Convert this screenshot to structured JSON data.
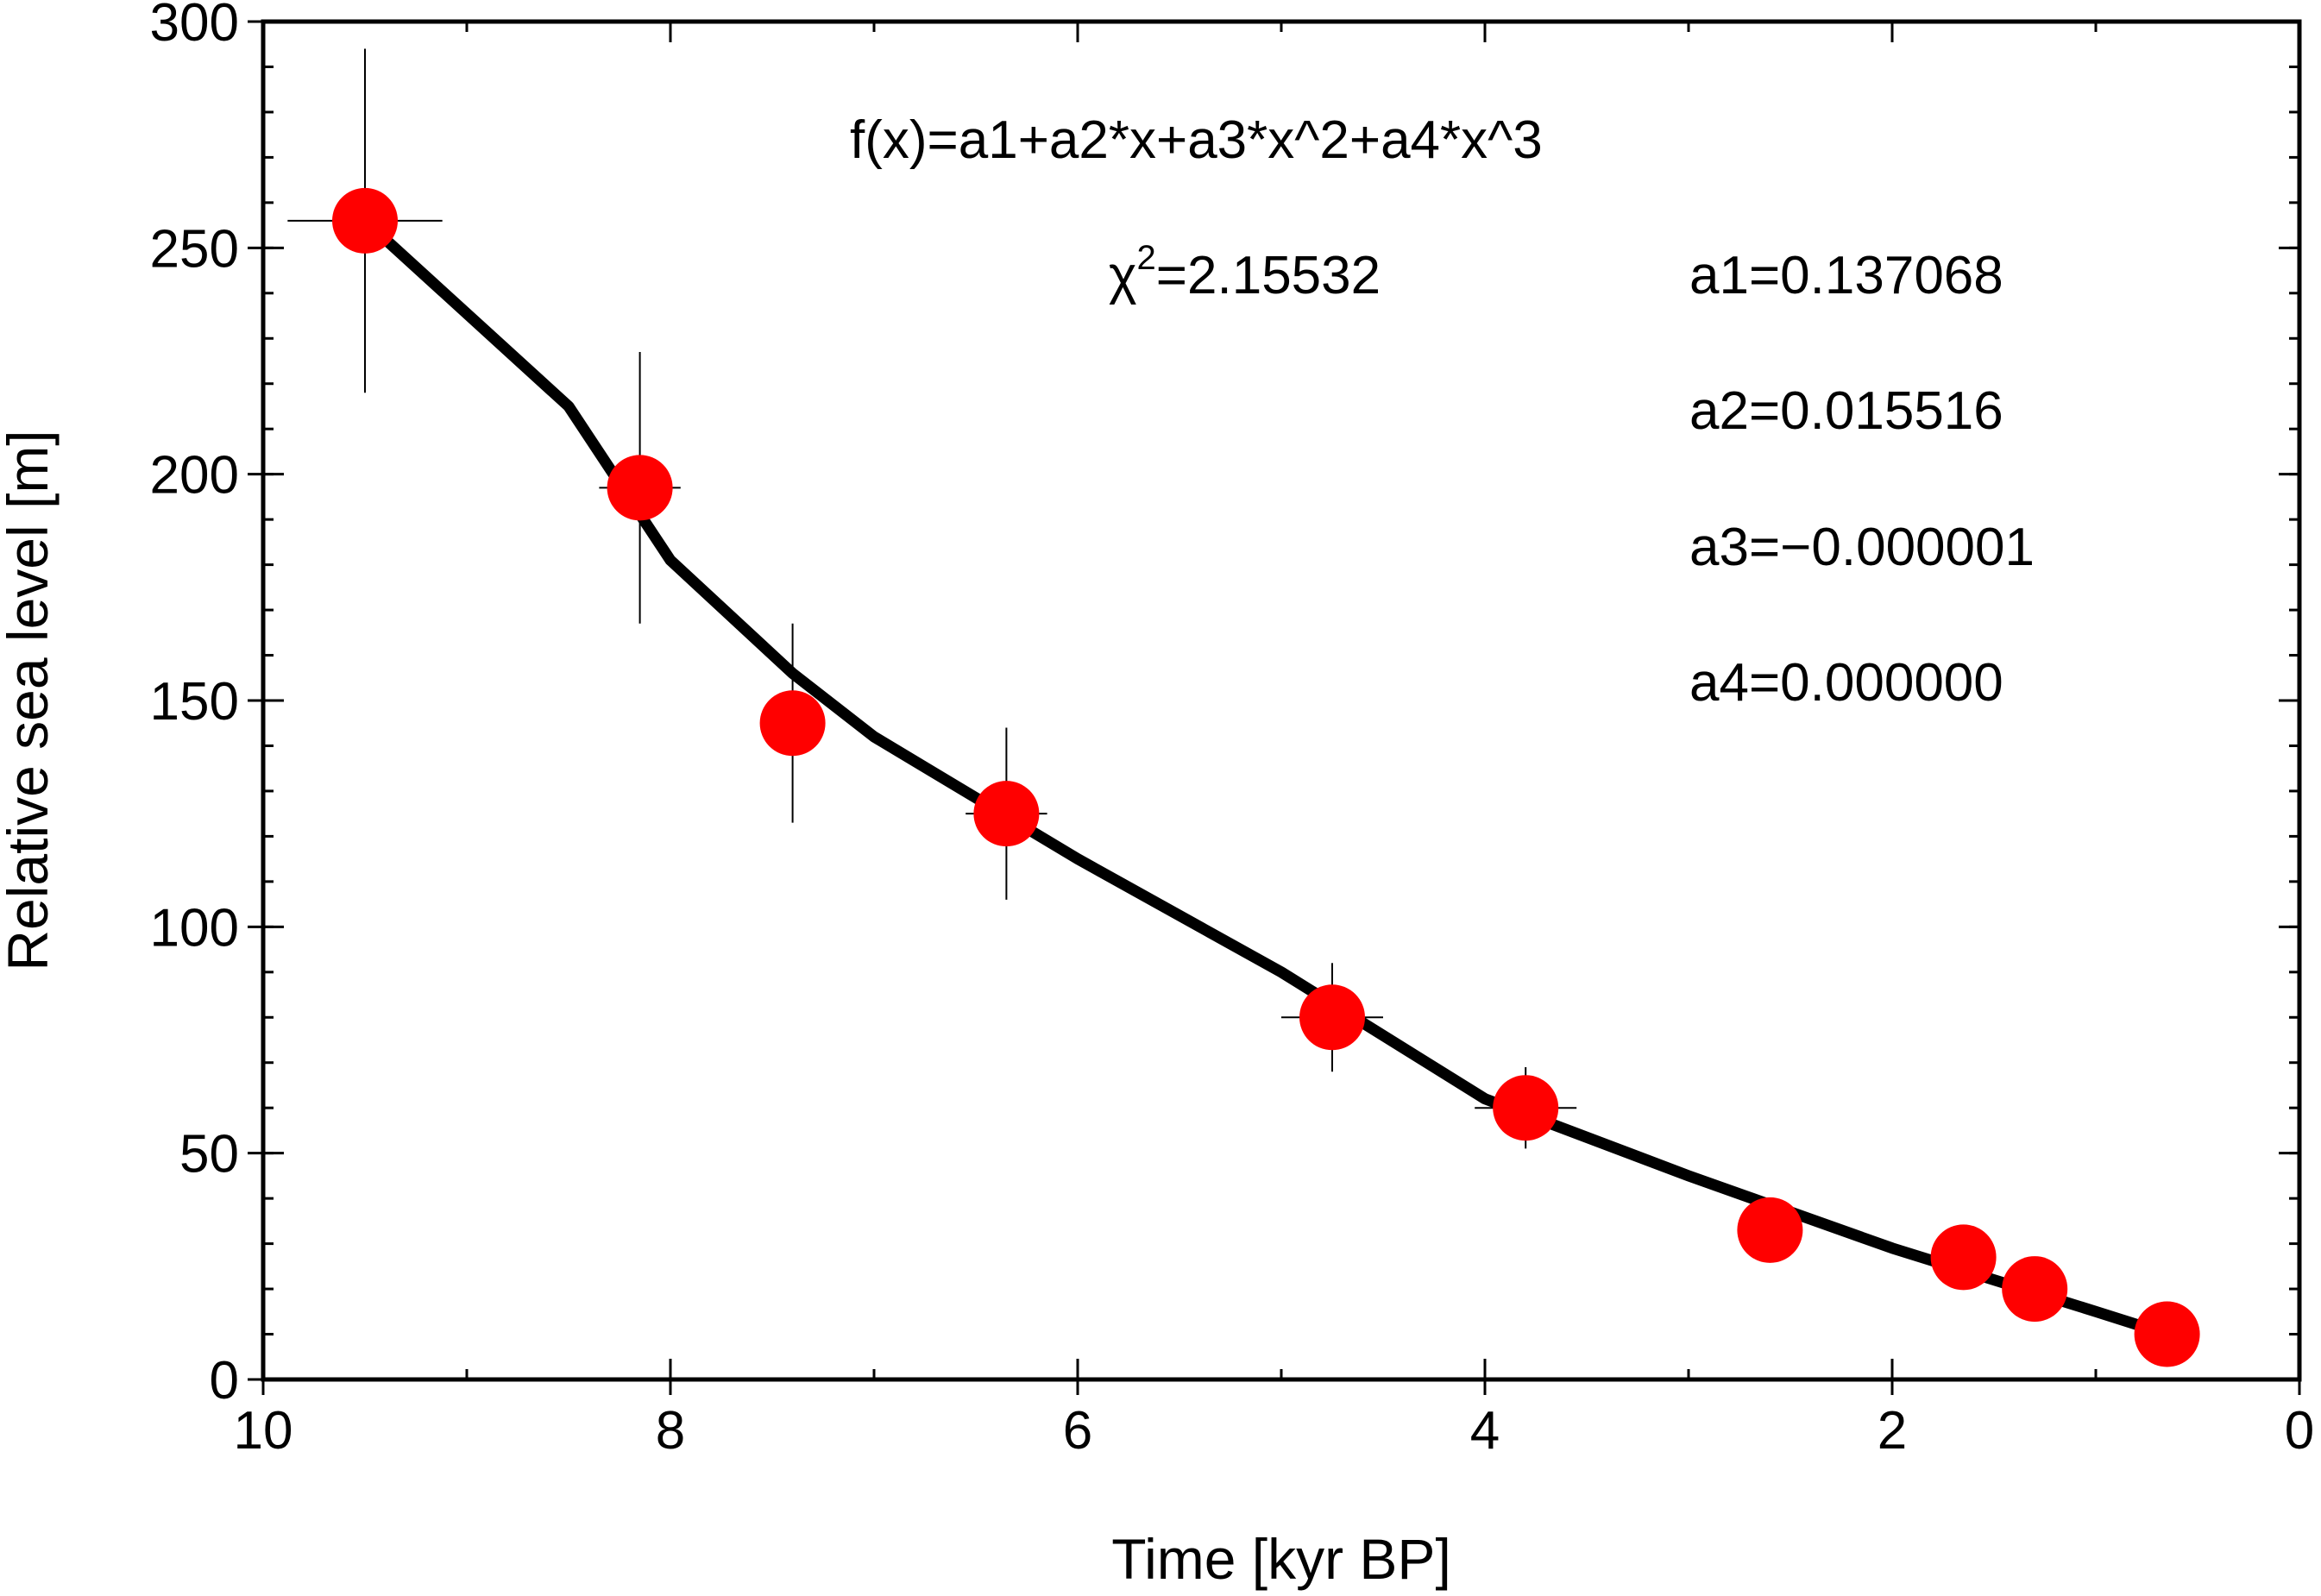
{
  "chart_data": {
    "type": "scatter",
    "title": "",
    "xlabel": "Time [kyr BP]",
    "ylabel": "Relative sea level [m]",
    "xlim": [
      10,
      0
    ],
    "ylim": [
      0,
      300
    ],
    "x_reversed": true,
    "grid": false,
    "x_ticks": [
      10,
      8,
      6,
      4,
      2,
      0
    ],
    "x_tick_labels": [
      "10",
      "8",
      "6",
      "4",
      "2",
      "0"
    ],
    "y_ticks": [
      0,
      50,
      100,
      150,
      200,
      250,
      300
    ],
    "y_tick_labels": [
      "0",
      "50",
      "100",
      "150",
      "200",
      "250",
      "300"
    ],
    "points": [
      {
        "x": 9.5,
        "y": 256,
        "xerr": 0.38,
        "yerr": 38
      },
      {
        "x": 8.15,
        "y": 197,
        "xerr": 0.2,
        "yerr": 30
      },
      {
        "x": 7.4,
        "y": 145,
        "xerr": 0.12,
        "yerr": 22
      },
      {
        "x": 6.35,
        "y": 125,
        "xerr": 0.2,
        "yerr": 19
      },
      {
        "x": 4.75,
        "y": 80,
        "xerr": 0.25,
        "yerr": 12
      },
      {
        "x": 3.8,
        "y": 60,
        "xerr": 0.25,
        "yerr": 9
      },
      {
        "x": 2.6,
        "y": 33,
        "xerr": 0.15,
        "yerr": 5
      },
      {
        "x": 1.65,
        "y": 27,
        "xerr": 0.15,
        "yerr": 4
      },
      {
        "x": 1.3,
        "y": 20,
        "xerr": 0.1,
        "yerr": 3
      },
      {
        "x": 0.65,
        "y": 10,
        "xerr": 0.08,
        "yerr": 2
      }
    ],
    "fit_curve": {
      "x": [
        9.5,
        8.5,
        8.0,
        7.4,
        7.0,
        6.0,
        5.0,
        4.0,
        3.0,
        2.0,
        1.0,
        0.65
      ],
      "y": [
        256,
        215,
        181,
        156,
        142,
        115,
        90,
        62,
        45,
        29,
        15,
        10
      ]
    },
    "marker_color": "#ff0000",
    "curve_color": "#000000",
    "annotations": {
      "formula": "f(x)=a1+a2*x+a3*x^2+a4*x^3",
      "chi_symbol": "χ",
      "chi_exponent": "2",
      "chi_value": "=2.15532",
      "params": [
        "a1=0.137068",
        "a2=0.015516",
        "a3=−0.000001",
        "a4=0.000000"
      ]
    }
  }
}
